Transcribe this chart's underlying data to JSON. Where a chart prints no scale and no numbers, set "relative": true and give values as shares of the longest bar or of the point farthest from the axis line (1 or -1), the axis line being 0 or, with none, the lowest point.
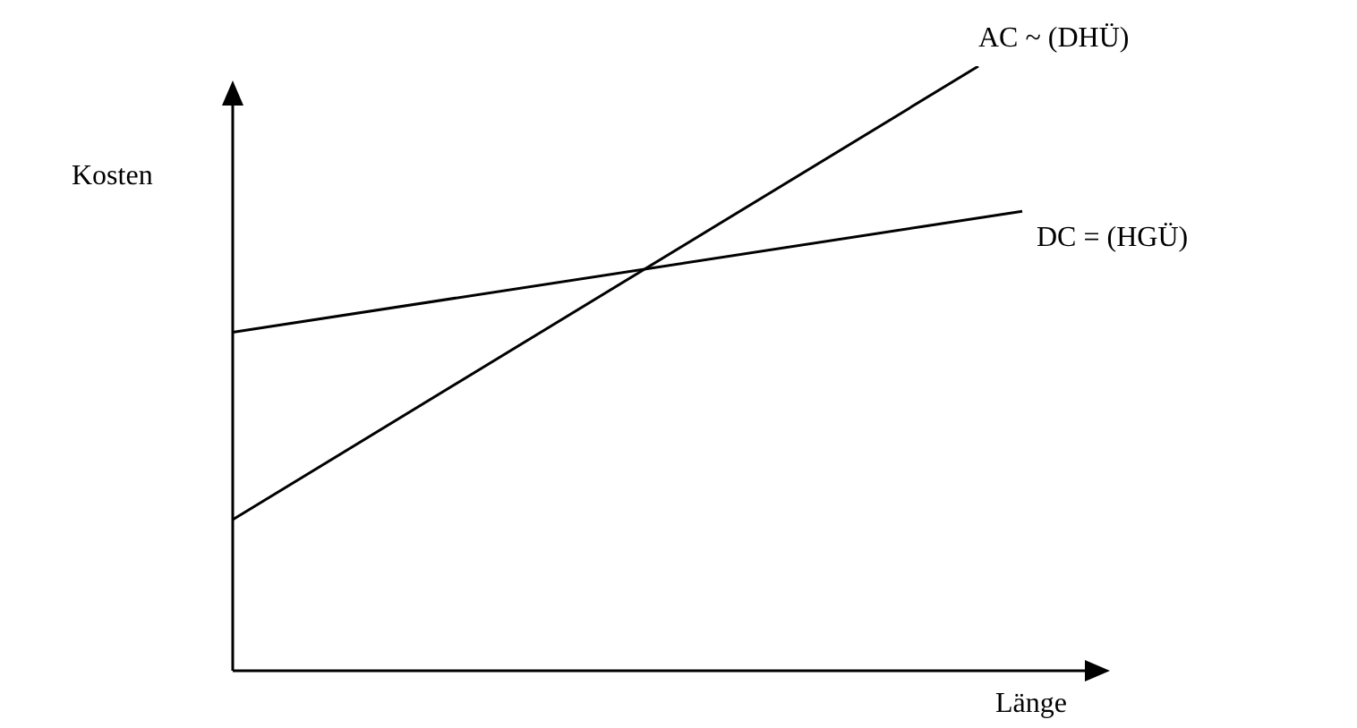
{
  "chart_data": {
    "type": "line",
    "xlabel": "Länge",
    "ylabel": "Kosten",
    "relative": true,
    "legend": false,
    "grid": false,
    "marker": "none",
    "line_style": "solid",
    "categories": [
      null,
      null,
      null,
      null,
      null,
      null,
      null,
      null,
      null,
      null,
      null,
      null,
      null,
      null,
      null,
      null,
      null,
      null,
      null,
      null,
      null
    ],
    "series": [
      {
        "name": "AC ~ (DHÜ)",
        "color": "#000000",
        "values": [
          0.25,
          null,
          null,
          null,
          null,
          null,
          null,
          null,
          null,
          null,
          null,
          null,
          null,
          null,
          null,
          null,
          null,
          1,
          null,
          null,
          null
        ]
      },
      {
        "name": "DC = (HGÜ)",
        "color": "#000000",
        "values": [
          0.56,
          null,
          null,
          null,
          null,
          null,
          null,
          null,
          null,
          null,
          null,
          null,
          null,
          null,
          null,
          null,
          null,
          null,
          0.76,
          null,
          null
        ]
      }
    ]
  }
}
